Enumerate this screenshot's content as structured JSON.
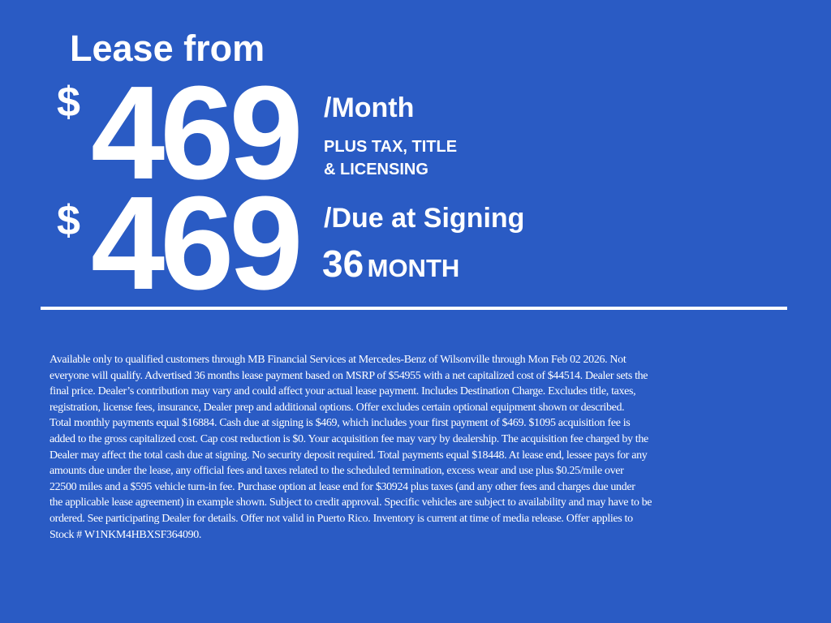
{
  "headline": "Lease from",
  "monthly": {
    "currency": "$",
    "amount": "469",
    "label": "/Month",
    "note_line1": "PLUS TAX, TITLE",
    "note_line2": "& LICENSING"
  },
  "due": {
    "currency": "$",
    "amount": "469",
    "label": "/Due at Signing"
  },
  "term": {
    "number": "36",
    "unit": "MONTH"
  },
  "colors": {
    "background": "#2a5bc4",
    "text": "#ffffff"
  },
  "disclaimer_lines": [
    "Available only to qualified customers through MB Financial Services at Mercedes-Benz of Wilsonville through Mon Feb 02 2026. Not",
    "everyone will qualify. Advertised 36 months lease payment based on MSRP of $54955 with a net capitalized cost of $44514. Dealer sets the",
    "final price. Dealer’s contribution may vary and could affect your actual lease payment. Includes Destination Charge. Excludes title, taxes,",
    "registration, license fees, insurance, Dealer prep and additional options. Offer excludes certain optional equipment shown or described.",
    "Total monthly payments equal $16884. Cash due at signing is $469, which includes your first payment of $469. $1095 acquisition fee is",
    "added to the gross capitalized cost. Cap cost reduction is $0. Your acquisition fee may vary by dealership. The acquisition fee charged by the",
    "Dealer may affect the total cash due at signing. No security deposit required. Total payments equal $18448. At lease end, lessee pays for any",
    "amounts due under the lease, any official fees and taxes related to the scheduled termination, excess wear and use plus $0.25/mile over",
    "22500 miles and a $595 vehicle turn-in fee. Purchase option at lease end for $30924 plus taxes (and any other fees and charges due under",
    "the applicable lease agreement) in example shown. Subject to credit approval. Specific vehicles are subject to availability and may have to be",
    "ordered. See participating Dealer for details. Offer not valid in Puerto Rico. Inventory is current at time of media release. Offer applies to",
    "Stock # W1NKM4HBXSF364090."
  ]
}
